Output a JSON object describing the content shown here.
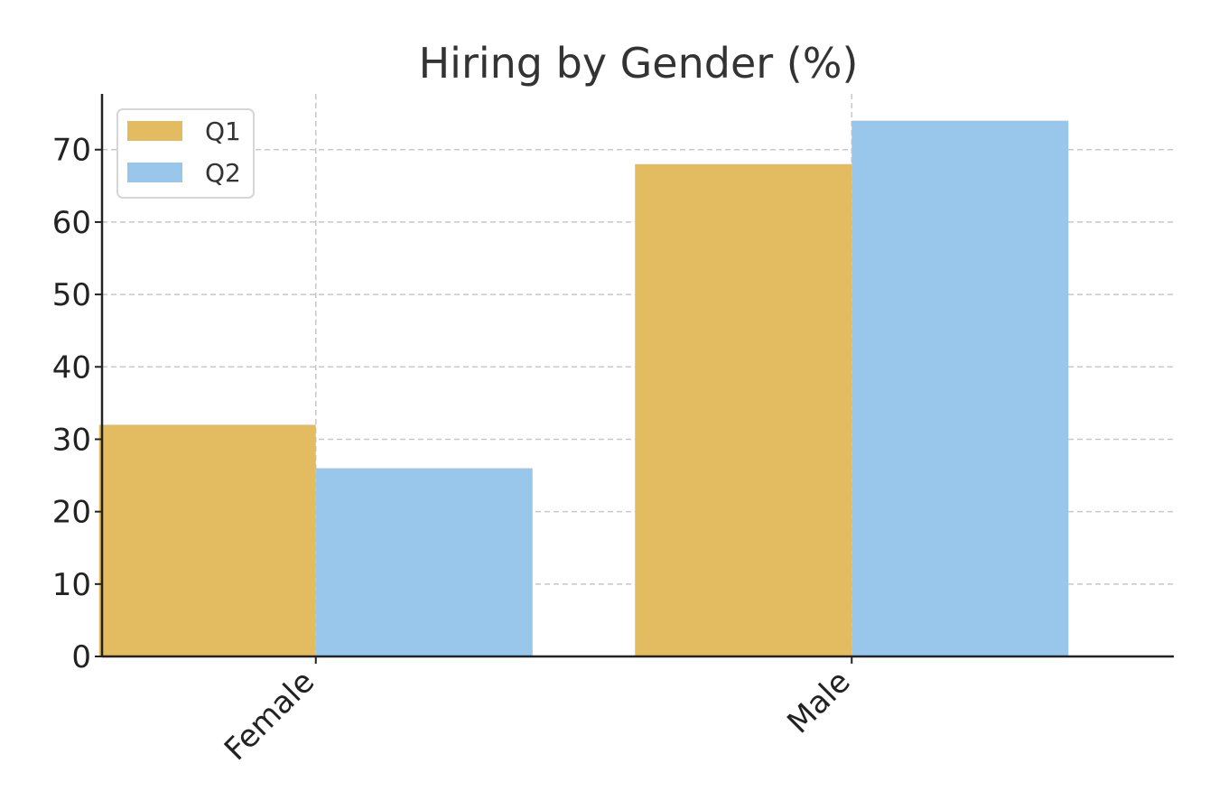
{
  "chart_data": {
    "type": "bar",
    "title": "Hiring by Gender (%)",
    "xlabel": "",
    "ylabel": "",
    "categories": [
      "Female",
      "Male"
    ],
    "series": [
      {
        "name": "Q1",
        "values": [
          32,
          68
        ],
        "color": "#E3BB61"
      },
      {
        "name": "Q2",
        "values": [
          26,
          74
        ],
        "color": "#98C7EB"
      }
    ],
    "ylim": [
      0,
      77.7
    ],
    "yticks": [
      0,
      10,
      20,
      30,
      40,
      50,
      60,
      70
    ],
    "grid": true,
    "legend_position": "top-left"
  }
}
